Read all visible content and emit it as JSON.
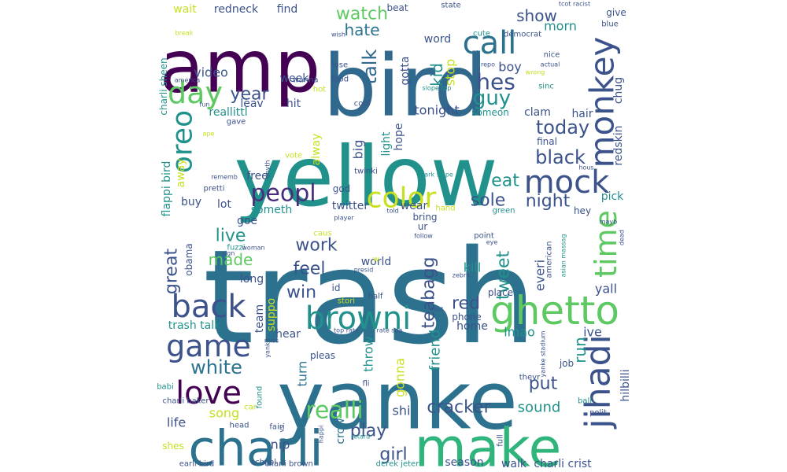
{
  "colors": {
    "background": "#ffffff",
    "palette": [
      "#440154",
      "#472d7b",
      "#3b528b",
      "#2c728e",
      "#21918c",
      "#28ae80",
      "#5ec962",
      "#addc30",
      "#fde725"
    ]
  },
  "words": [
    {
      "text": "trash",
      "c": "#2c728e"
    },
    {
      "text": "yellow",
      "c": "#21918c"
    },
    {
      "text": "bird",
      "c": "#31688e"
    },
    {
      "text": "amp",
      "c": "#440154"
    },
    {
      "text": "yanke",
      "c": "#2c728e"
    },
    {
      "text": "make",
      "c": "#2fb47c"
    },
    {
      "text": "charli",
      "c": "#2c728e"
    },
    {
      "text": "monkey",
      "c": "#3b528b"
    },
    {
      "text": "ghetto",
      "c": "#5ec962"
    },
    {
      "text": "browni",
      "c": "#21918c"
    },
    {
      "text": "jihadi",
      "c": "#3b528b"
    },
    {
      "text": "color",
      "c": "#c8e020"
    },
    {
      "text": "mock",
      "c": "#3b528b"
    },
    {
      "text": "call",
      "c": "#2c728e"
    },
    {
      "text": "day",
      "c": "#5ec962"
    },
    {
      "text": "game",
      "c": "#3b528b"
    },
    {
      "text": "love",
      "c": "#440154"
    },
    {
      "text": "back",
      "c": "#3b528b"
    },
    {
      "text": "oreo",
      "c": "#21918c"
    },
    {
      "text": "peopl",
      "c": "#472d7b"
    },
    {
      "text": "time",
      "c": "#5ec962"
    },
    {
      "text": "realli",
      "c": "#5ec962"
    },
    {
      "text": "white",
      "c": "#2c728e"
    },
    {
      "text": "watch",
      "c": "#5ec962"
    },
    {
      "text": "hate",
      "c": "#2c728e"
    },
    {
      "text": "guy",
      "c": "#21918c"
    },
    {
      "text": "hes",
      "c": "#3b528b"
    },
    {
      "text": "kid",
      "c": "#21918c"
    },
    {
      "text": "talk",
      "c": "#31688e"
    },
    {
      "text": "year",
      "c": "#3b528b"
    },
    {
      "text": "show",
      "c": "#3b528b"
    },
    {
      "text": "today",
      "c": "#3b528b"
    },
    {
      "text": "black",
      "c": "#3b528b"
    },
    {
      "text": "eat",
      "c": "#21918c"
    },
    {
      "text": "sole",
      "c": "#3b528b"
    },
    {
      "text": "night",
      "c": "#3b528b"
    },
    {
      "text": "teabagg",
      "c": "#3b528b"
    },
    {
      "text": "tweet",
      "c": "#21918c"
    },
    {
      "text": "live",
      "c": "#21918c"
    },
    {
      "text": "made",
      "c": "#5ec962"
    },
    {
      "text": "feel",
      "c": "#3b528b"
    },
    {
      "text": "work",
      "c": "#3b528b"
    },
    {
      "text": "win",
      "c": "#3b528b"
    },
    {
      "text": "red",
      "c": "#3b528b"
    },
    {
      "text": "put",
      "c": "#3b528b"
    },
    {
      "text": "run",
      "c": "#21918c"
    },
    {
      "text": "cracker",
      "c": "#3b528b"
    },
    {
      "text": "play",
      "c": "#3b528b"
    },
    {
      "text": "girl",
      "c": "#3b528b"
    },
    {
      "text": "friend",
      "c": "#21918c"
    },
    {
      "text": "great",
      "c": "#3b528b"
    },
    {
      "text": "sound",
      "c": "#21918c"
    },
    {
      "text": "redskin",
      "c": "#3b528b"
    },
    {
      "text": "chug",
      "c": "#3b528b"
    },
    {
      "text": "hilbilli",
      "c": "#3b528b"
    },
    {
      "text": "lmao",
      "c": "#21918c"
    },
    {
      "text": "ive",
      "c": "#3b528b"
    },
    {
      "text": "yall",
      "c": "#3b528b"
    },
    {
      "text": "everi",
      "c": "#3b528b"
    },
    {
      "text": "kill",
      "c": "#21918c"
    },
    {
      "text": "throw",
      "c": "#21918c"
    },
    {
      "text": "gonna",
      "c": "#c8e020"
    },
    {
      "text": "turn",
      "c": "#2c728e"
    },
    {
      "text": "shi",
      "c": "#3b528b"
    },
    {
      "text": "crow",
      "c": "#2c728e"
    },
    {
      "text": "nip",
      "c": "#3b528b"
    },
    {
      "text": "song",
      "c": "#c8e020"
    },
    {
      "text": "life",
      "c": "#3b528b"
    },
    {
      "text": "shes",
      "c": "#c8e020"
    },
    {
      "text": "season",
      "c": "#3b528b"
    },
    {
      "text": "walk",
      "c": "#3b528b"
    },
    {
      "text": "charli crist",
      "c": "#3b528b"
    },
    {
      "text": "charli brown",
      "c": "#3b528b"
    },
    {
      "text": "school",
      "c": "#3b528b"
    },
    {
      "text": "earli bird",
      "c": "#3b528b"
    },
    {
      "text": "derek jeter",
      "c": "#21918c"
    },
    {
      "text": "full",
      "c": "#3b528b"
    },
    {
      "text": "wait",
      "c": "#c8e020"
    },
    {
      "text": "redneck",
      "c": "#3b528b"
    },
    {
      "text": "find",
      "c": "#3b528b"
    },
    {
      "text": "beat",
      "c": "#3b528b"
    },
    {
      "text": "state",
      "c": "#3b528b"
    },
    {
      "text": "tcot racist",
      "c": "#3b528b"
    },
    {
      "text": "give",
      "c": "#3b528b"
    },
    {
      "text": "morn",
      "c": "#21918c"
    },
    {
      "text": "blue",
      "c": "#3b528b"
    },
    {
      "text": "word",
      "c": "#3b528b"
    },
    {
      "text": "cute",
      "c": "#21918c"
    },
    {
      "text": "democrat",
      "c": "#3b528b"
    },
    {
      "text": "break",
      "c": "#c8e020"
    },
    {
      "text": "wish",
      "c": "#3b528b"
    },
    {
      "text": "video",
      "c": "#3b528b"
    },
    {
      "text": "week",
      "c": "#3b528b"
    },
    {
      "text": "leav",
      "c": "#3b528b"
    },
    {
      "text": "hit",
      "c": "#3b528b"
    },
    {
      "text": "reallittl",
      "c": "#21918c"
    },
    {
      "text": "gotta",
      "c": "#3b528b"
    },
    {
      "text": "stop",
      "c": "#c8e020"
    },
    {
      "text": "boy",
      "c": "#3b528b"
    },
    {
      "text": "tonight",
      "c": "#3b528b"
    },
    {
      "text": "clam",
      "c": "#3b528b"
    },
    {
      "text": "hair",
      "c": "#3b528b"
    },
    {
      "text": "someon",
      "c": "#21918c"
    },
    {
      "text": "hope",
      "c": "#3b528b"
    },
    {
      "text": "big",
      "c": "#3b528b"
    },
    {
      "text": "light",
      "c": "#21918c"
    },
    {
      "text": "final",
      "c": "#3b528b"
    },
    {
      "text": "alway",
      "c": "#c8e020"
    },
    {
      "text": "away",
      "c": "#c8e020"
    },
    {
      "text": "free",
      "c": "#3b528b"
    },
    {
      "text": "god",
      "c": "#3b528b"
    },
    {
      "text": "buy",
      "c": "#3b528b"
    },
    {
      "text": "lot",
      "c": "#3b528b"
    },
    {
      "text": "goe",
      "c": "#3b528b"
    },
    {
      "text": "someth",
      "c": "#21918c"
    },
    {
      "text": "twitter",
      "c": "#3b528b"
    },
    {
      "text": "wear",
      "c": "#3b528b"
    },
    {
      "text": "pick",
      "c": "#21918c"
    },
    {
      "text": "charli sheen",
      "c": "#21918c"
    },
    {
      "text": "flappi bird",
      "c": "#21918c"
    },
    {
      "text": "obama",
      "c": "#3b528b"
    },
    {
      "text": "long",
      "c": "#3b528b"
    },
    {
      "text": "team",
      "c": "#3b528b"
    },
    {
      "text": "suppo",
      "c": "#c8e020"
    },
    {
      "text": "world",
      "c": "#3b528b"
    },
    {
      "text": "id",
      "c": "#3b528b"
    },
    {
      "text": "stori",
      "c": "#c8e020"
    },
    {
      "text": "half",
      "c": "#3b528b"
    },
    {
      "text": "trash talk",
      "c": "#21918c"
    },
    {
      "text": "hear",
      "c": "#3b528b"
    },
    {
      "text": "home",
      "c": "#3b528b"
    },
    {
      "text": "pleas",
      "c": "#3b528b"
    },
    {
      "text": "charli baker",
      "c": "#3b528b"
    },
    {
      "text": "babi",
      "c": "#21918c"
    },
    {
      "text": "found",
      "c": "#21918c"
    },
    {
      "text": "car",
      "c": "#c8e020"
    },
    {
      "text": "fli",
      "c": "#3b528b"
    },
    {
      "text": "job",
      "c": "#3b528b"
    },
    {
      "text": "theyr",
      "c": "#3b528b"
    },
    {
      "text": "ball",
      "c": "#21918c"
    },
    {
      "text": "polit",
      "c": "#3b528b"
    },
    {
      "text": "head",
      "c": "#3b528b"
    },
    {
      "text": "fairi",
      "c": "#3b528b"
    },
    {
      "text": "happi",
      "c": "#3b528b"
    },
    {
      "text": "retard",
      "c": "#21918c"
    },
    {
      "text": "vs",
      "c": "#3b528b"
    },
    {
      "text": "miss",
      "c": "#3b528b"
    },
    {
      "text": "yank",
      "c": "#3b528b"
    },
    {
      "text": "yanke stadium",
      "c": "#3b528b"
    },
    {
      "text": "place",
      "c": "#3b528b"
    },
    {
      "text": "phone",
      "c": "#3b528b"
    },
    {
      "text": "lost",
      "c": "#3b528b"
    },
    {
      "text": "top rate",
      "c": "#3b528b"
    },
    {
      "text": "rate spa",
      "c": "#3b528b"
    },
    {
      "text": "american",
      "c": "#3b528b"
    },
    {
      "text": "asian massag",
      "c": "#21918c"
    },
    {
      "text": "point",
      "c": "#3b528b"
    },
    {
      "text": "eye",
      "c": "#3b528b"
    },
    {
      "text": "dead",
      "c": "#3b528b"
    },
    {
      "text": "mayb",
      "c": "#3b528b"
    },
    {
      "text": "hey",
      "c": "#3b528b"
    },
    {
      "text": "green",
      "c": "#21918c"
    },
    {
      "text": "hand",
      "c": "#c8e020"
    },
    {
      "text": "bring",
      "c": "#3b528b"
    },
    {
      "text": "ur",
      "c": "#3b528b"
    },
    {
      "text": "follow",
      "c": "#3b528b"
    },
    {
      "text": "caus",
      "c": "#c8e020"
    },
    {
      "text": "fuzzi",
      "c": "#21918c"
    },
    {
      "text": "woman",
      "c": "#3b528b"
    },
    {
      "text": "sign",
      "c": "#3b528b"
    },
    {
      "text": "presid",
      "c": "#3b528b"
    },
    {
      "text": "zebra",
      "c": "#3b528b"
    },
    {
      "text": "told",
      "c": "#3b528b"
    },
    {
      "text": "player",
      "c": "#3b528b"
    },
    {
      "text": "rememb",
      "c": "#3b528b"
    },
    {
      "text": "anyth",
      "c": "#3b528b"
    },
    {
      "text": "vote",
      "c": "#c8e020"
    },
    {
      "text": "twinki",
      "c": "#3b528b"
    },
    {
      "text": "park slope",
      "c": "#21918c"
    },
    {
      "text": "hous",
      "c": "#3b528b"
    },
    {
      "text": "pretti",
      "c": "#3b528b"
    },
    {
      "text": "gave",
      "c": "#3b528b"
    },
    {
      "text": "ape",
      "c": "#c8e020"
    },
    {
      "text": "fun",
      "c": "#3b528b"
    },
    {
      "text": "wanna",
      "c": "#3b528b"
    },
    {
      "text": "cool",
      "c": "#3b528b"
    },
    {
      "text": "hot",
      "c": "#c8e020"
    },
    {
      "text": "food",
      "c": "#3b528b"
    },
    {
      "text": "lose",
      "c": "#3b528b"
    },
    {
      "text": "america",
      "c": "#3b528b"
    },
    {
      "text": "repo",
      "c": "#3b528b"
    },
    {
      "text": "slope top",
      "c": "#21918c"
    },
    {
      "text": "wrong",
      "c": "#c8e020"
    },
    {
      "text": "actual",
      "c": "#3b528b"
    },
    {
      "text": "sinc",
      "c": "#21918c"
    },
    {
      "text": "nice",
      "c": "#3b528b"
    },
    {
      "text": "w",
      "c": "#c8e020"
    }
  ]
}
